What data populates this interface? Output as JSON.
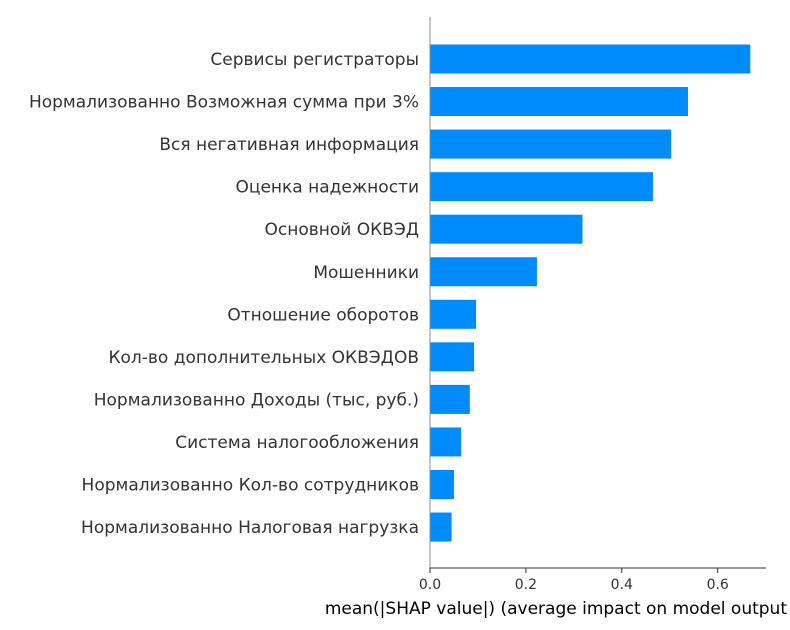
{
  "chart_data": {
    "type": "bar",
    "orientation": "horizontal",
    "categories": [
      "Сервисы регистраторы",
      "Нормализованно Возможная сумма при 3%",
      "Вся негативная информация",
      "Оценка надежности",
      "Основной ОКВЭД",
      "Мошенники",
      "Отношение оборотов",
      "Кол-во дополнительных ОКВЭДОВ",
      "Нормализованно Доходы (тыс, руб.)",
      "Система налогообложения",
      "Нормализованно Кол-во сотрудников",
      "Нормализованно Налоговая нагрузка"
    ],
    "values": [
      0.668,
      0.538,
      0.503,
      0.465,
      0.318,
      0.223,
      0.096,
      0.092,
      0.083,
      0.065,
      0.05,
      0.045
    ],
    "xlabel": "mean(|SHAP value|) (average impact on model output",
    "ylabel": "",
    "xticks": [
      0.0,
      0.2,
      0.4,
      0.6
    ],
    "xtick_labels": [
      "0.0",
      "0.2",
      "0.4",
      "0.6"
    ],
    "xlim": [
      0,
      0.7
    ],
    "bar_color": "#008bfb",
    "grid": false,
    "legend": "none"
  }
}
